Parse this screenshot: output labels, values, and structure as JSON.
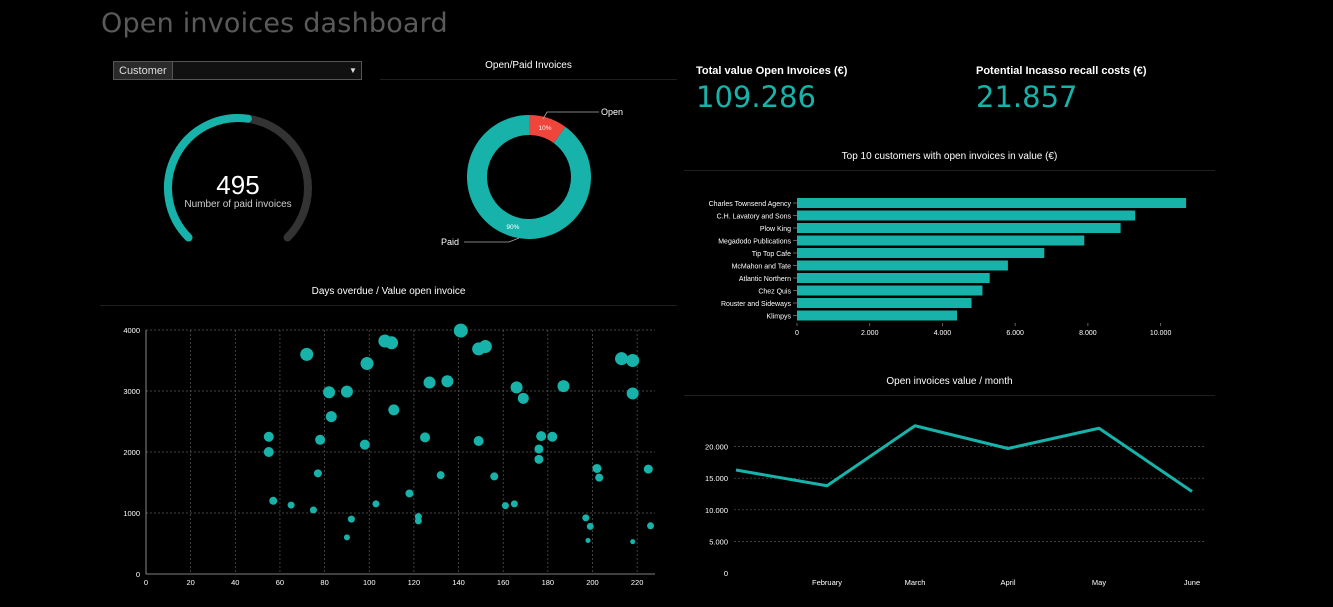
{
  "title": "Open invoices dashboard",
  "filter": {
    "label": "Customer",
    "value": ""
  },
  "colors": {
    "teal": "#17b3aa",
    "red": "#f0453a",
    "grid": "#5a5a5a",
    "track": "#333333"
  },
  "gauge": {
    "value": "495",
    "label": "Number of paid invoices",
    "fraction": 0.53
  },
  "kpis": [
    {
      "label": "Total value Open Invoices (€)",
      "value": "109.286"
    },
    {
      "label": "Potential Incasso recall costs (€)",
      "value": "21.857"
    }
  ],
  "chart_data": [
    {
      "type": "pie",
      "title": "Open/Paid Invoices",
      "categories": [
        "Open",
        "Paid"
      ],
      "values": [
        10,
        90
      ],
      "data_labels": [
        "10%",
        "90%"
      ]
    },
    {
      "type": "bar",
      "orientation": "horizontal",
      "title": "Top 10 customers with open invoices in value (€)",
      "categories": [
        "Charles Townsend Agency",
        "C.H. Lavatory and Sons",
        "Plow King",
        "Megadodo Publications",
        "Tip Top Cafe",
        "McMahon and Tate",
        "Atlantic Northern",
        "Chez Quis",
        "Rouster and Sideways",
        "Klimpys"
      ],
      "values": [
        10700,
        9300,
        8900,
        7900,
        6800,
        5800,
        5300,
        5100,
        4800,
        4400
      ],
      "xlim": [
        0,
        11000
      ],
      "xticks": [
        "0",
        "2.000",
        "4.000",
        "6.000",
        "8.000",
        "10.000"
      ],
      "grid": false
    },
    {
      "type": "scatter",
      "title": "Days overdue / Value open invoice",
      "xlim": [
        0,
        228
      ],
      "ylim": [
        0,
        4000
      ],
      "xticks": [
        "0",
        "20",
        "40",
        "60",
        "80",
        "100",
        "120",
        "140",
        "160",
        "180",
        "200",
        "220"
      ],
      "yticks": [
        "0",
        "1000",
        "2000",
        "3000",
        "4000"
      ],
      "grid": true,
      "points": [
        {
          "x": 55,
          "y": 2250,
          "r": 5
        },
        {
          "x": 55,
          "y": 2000,
          "r": 5
        },
        {
          "x": 57,
          "y": 1200,
          "r": 4
        },
        {
          "x": 65,
          "y": 1130,
          "r": 3.5
        },
        {
          "x": 72,
          "y": 3600,
          "r": 6.5
        },
        {
          "x": 75,
          "y": 1050,
          "r": 3.5
        },
        {
          "x": 77,
          "y": 1650,
          "r": 4
        },
        {
          "x": 78,
          "y": 2200,
          "r": 5
        },
        {
          "x": 82,
          "y": 2980,
          "r": 6
        },
        {
          "x": 83,
          "y": 2580,
          "r": 5.5
        },
        {
          "x": 90,
          "y": 2990,
          "r": 6
        },
        {
          "x": 90,
          "y": 600,
          "r": 3
        },
        {
          "x": 92,
          "y": 900,
          "r": 3.5
        },
        {
          "x": 98,
          "y": 2120,
          "r": 5
        },
        {
          "x": 99,
          "y": 3450,
          "r": 6.5
        },
        {
          "x": 103,
          "y": 1150,
          "r": 3.5
        },
        {
          "x": 107,
          "y": 3820,
          "r": 6.5
        },
        {
          "x": 110,
          "y": 3790,
          "r": 6.5
        },
        {
          "x": 111,
          "y": 2690,
          "r": 5.5
        },
        {
          "x": 118,
          "y": 1320,
          "r": 4
        },
        {
          "x": 122,
          "y": 870,
          "r": 3.5
        },
        {
          "x": 122,
          "y": 940,
          "r": 3.5
        },
        {
          "x": 125,
          "y": 2240,
          "r": 5
        },
        {
          "x": 127,
          "y": 3140,
          "r": 6
        },
        {
          "x": 132,
          "y": 1620,
          "r": 4
        },
        {
          "x": 135,
          "y": 3160,
          "r": 6
        },
        {
          "x": 141,
          "y": 3990,
          "r": 7
        },
        {
          "x": 149,
          "y": 3690,
          "r": 6.5
        },
        {
          "x": 149,
          "y": 2180,
          "r": 5
        },
        {
          "x": 152,
          "y": 3730,
          "r": 6.5
        },
        {
          "x": 156,
          "y": 1600,
          "r": 4
        },
        {
          "x": 161,
          "y": 1120,
          "r": 3.5
        },
        {
          "x": 165,
          "y": 1150,
          "r": 3.5
        },
        {
          "x": 166,
          "y": 3060,
          "r": 6
        },
        {
          "x": 169,
          "y": 2880,
          "r": 5.5
        },
        {
          "x": 176,
          "y": 1880,
          "r": 4.5
        },
        {
          "x": 176,
          "y": 2050,
          "r": 4.5
        },
        {
          "x": 177,
          "y": 2260,
          "r": 5
        },
        {
          "x": 182,
          "y": 2250,
          "r": 5
        },
        {
          "x": 187,
          "y": 3080,
          "r": 6
        },
        {
          "x": 197,
          "y": 920,
          "r": 3.5
        },
        {
          "x": 198,
          "y": 550,
          "r": 2.5
        },
        {
          "x": 199,
          "y": 780,
          "r": 3.5
        },
        {
          "x": 202,
          "y": 1730,
          "r": 4.5
        },
        {
          "x": 203,
          "y": 1580,
          "r": 4
        },
        {
          "x": 213,
          "y": 3530,
          "r": 6.5
        },
        {
          "x": 218,
          "y": 3500,
          "r": 6.5
        },
        {
          "x": 218,
          "y": 2960,
          "r": 6
        },
        {
          "x": 218,
          "y": 530,
          "r": 2.5
        },
        {
          "x": 225,
          "y": 1720,
          "r": 4.5
        },
        {
          "x": 226,
          "y": 790,
          "r": 3.5
        }
      ]
    },
    {
      "type": "line",
      "title": "Open invoices value / month",
      "categories": [
        "",
        "February",
        "March",
        "April",
        "May",
        "June"
      ],
      "values": [
        16300,
        13800,
        23300,
        19700,
        22900,
        12900
      ],
      "ylim": [
        0,
        25000
      ],
      "yticks": [
        "0",
        "5.000",
        "10.000",
        "15.000",
        "20.000"
      ],
      "grid": true
    }
  ]
}
